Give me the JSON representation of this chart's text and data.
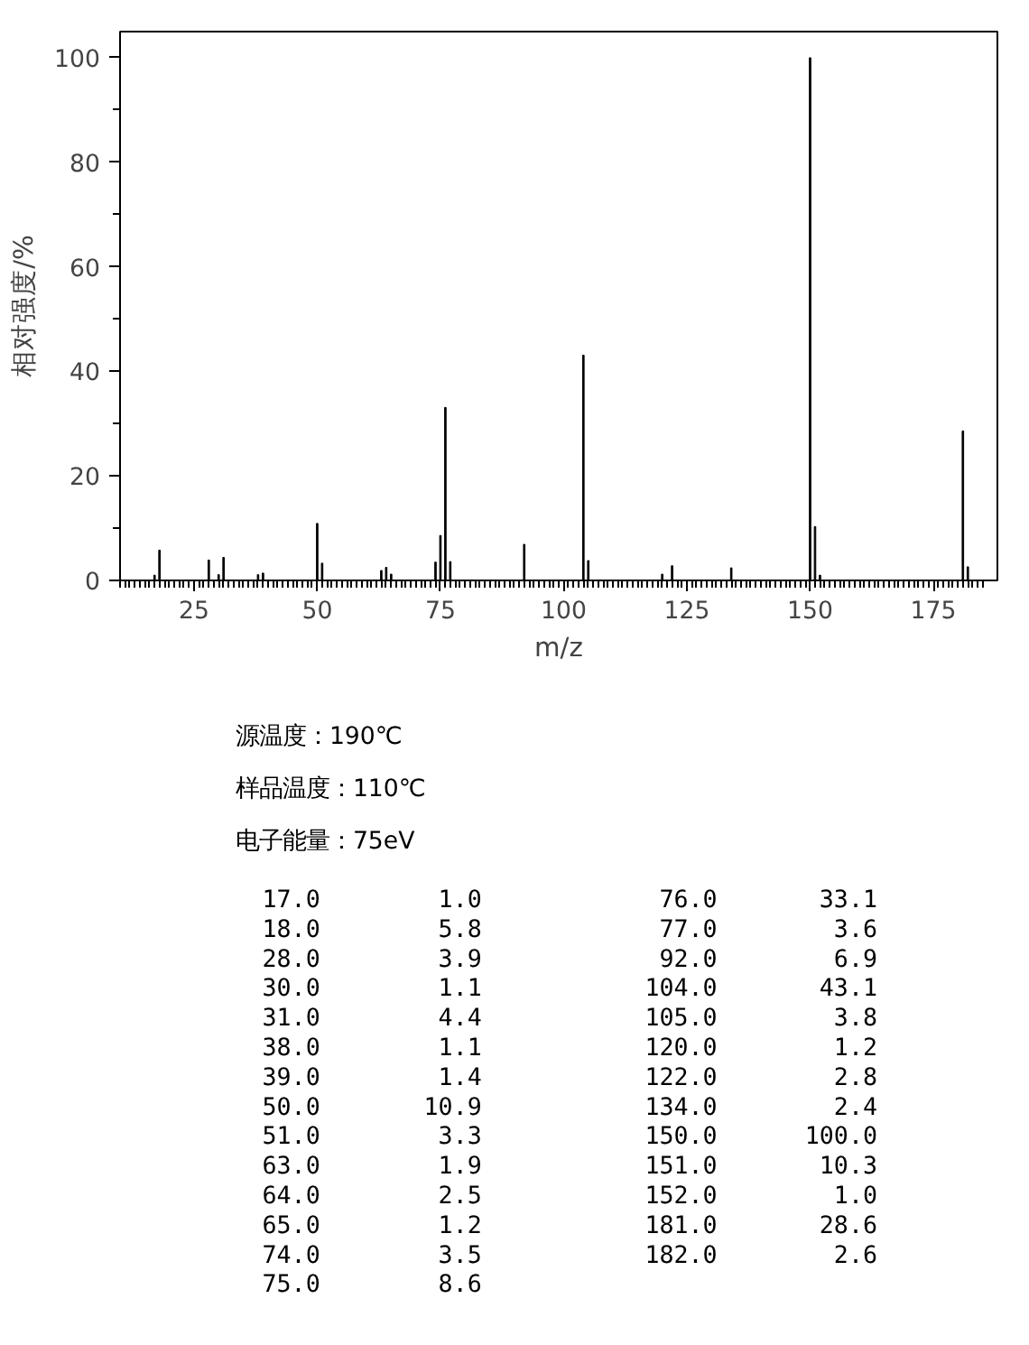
{
  "chart_data": [
    {
      "type": "bar",
      "xlabel": "m/z",
      "ylabel": "相对强度/%",
      "x": [
        17.0,
        18.0,
        28.0,
        30.0,
        31.0,
        38.0,
        39.0,
        50.0,
        51.0,
        63.0,
        64.0,
        65.0,
        74.0,
        75.0,
        76.0,
        77.0,
        92.0,
        104.0,
        105.0,
        120.0,
        122.0,
        134.0,
        150.0,
        151.0,
        152.0,
        181.0,
        182.0
      ],
      "values": [
        1.0,
        5.8,
        3.9,
        1.1,
        4.4,
        1.1,
        1.4,
        10.9,
        3.3,
        1.9,
        2.5,
        1.2,
        3.5,
        8.6,
        33.1,
        3.6,
        6.9,
        43.1,
        3.8,
        1.2,
        2.8,
        2.4,
        100.0,
        10.3,
        1.0,
        28.6,
        2.6
      ],
      "color": "#000000",
      "xlim": [
        10,
        188
      ],
      "xticks": [
        25,
        50,
        75,
        100,
        125,
        150,
        175
      ],
      "ylim": [
        0,
        105
      ],
      "yticks": [
        0,
        20,
        40,
        60,
        80,
        100
      ],
      "grid": false,
      "annotations": [
        "源温度：190℃",
        "样品温度：110℃",
        "电子能量：75eV"
      ]
    },
    {
      "type": "other",
      "categories": [
        "17.0",
        "18.0",
        "28.0",
        "30.0",
        "31.0",
        "38.0",
        "39.0",
        "50.0",
        "51.0",
        "63.0",
        "64.0",
        "65.0",
        "74.0",
        "75.0",
        "76.0",
        "77.0",
        "92.0",
        "104.0",
        "105.0",
        "120.0",
        "122.0",
        "134.0",
        "150.0",
        "151.0",
        "152.0",
        "181.0",
        "182.0"
      ],
      "values": [
        1.0,
        5.8,
        3.9,
        1.1,
        4.4,
        1.1,
        1.4,
        10.9,
        3.3,
        1.9,
        2.5,
        1.2,
        3.5,
        8.6,
        33.1,
        3.6,
        6.9,
        43.1,
        3.8,
        1.2,
        2.8,
        2.4,
        100.0,
        10.3,
        1.0,
        28.6,
        2.6
      ],
      "value_labels": [
        "1.0",
        "5.8",
        "3.9",
        "1.1",
        "4.4",
        "1.1",
        "1.4",
        "10.9",
        "3.3",
        "1.9",
        "2.5",
        "1.2",
        "3.5",
        "8.6",
        "33.1",
        "3.6",
        "6.9",
        "43.1",
        "3.8",
        "1.2",
        "2.8",
        "2.4",
        "100.0",
        "10.3",
        "1.0",
        "28.6",
        "2.6"
      ]
    }
  ]
}
